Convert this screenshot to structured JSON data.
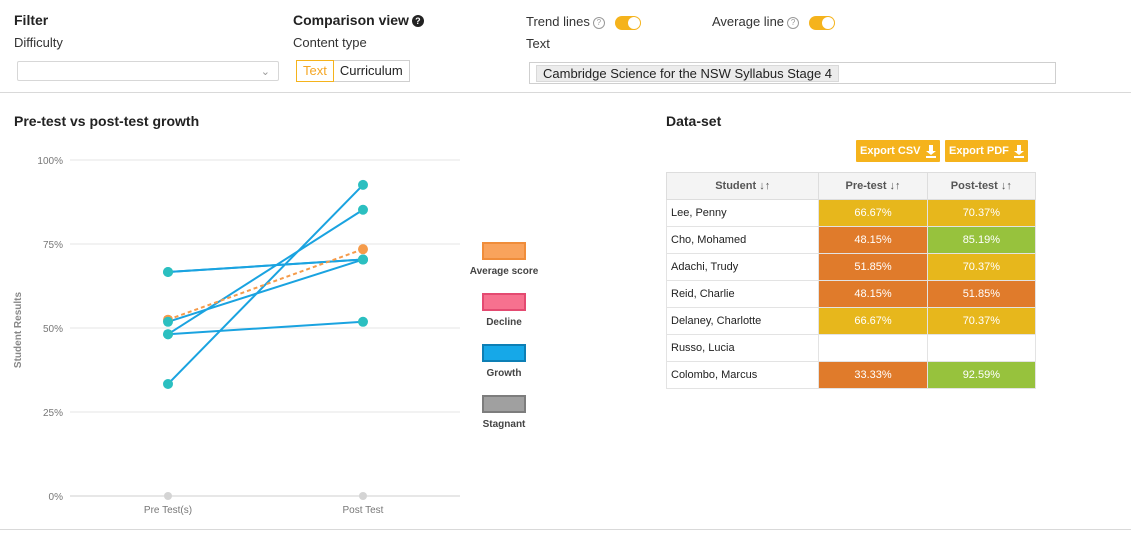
{
  "filter": {
    "title": "Filter",
    "difficulty_label": "Difficulty",
    "difficulty_value": ""
  },
  "comparison": {
    "title": "Comparison view",
    "content_type_label": "Content type",
    "options": [
      "Text",
      "Curriculum"
    ],
    "selected": "Text"
  },
  "trend_lines": {
    "label": "Trend lines",
    "enabled": true
  },
  "average_line": {
    "label": "Average line",
    "enabled": true
  },
  "text_field": {
    "label": "Text",
    "tag": "Cambridge Science for the NSW Syllabus Stage 4"
  },
  "chart_section": {
    "title": "Pre-test vs post-test growth"
  },
  "dataset_section": {
    "title": "Data-set",
    "export_csv": "Export CSV",
    "export_pdf": "Export PDF",
    "columns": [
      "Student ↓↑",
      "Pre-test ↓↑",
      "Post-test ↓↑"
    ],
    "rows": [
      {
        "name": "Lee, Penny",
        "pre": "66.67%",
        "post": "70.37%",
        "pre_color": "gold",
        "post_color": "gold"
      },
      {
        "name": "Cho, Mohamed",
        "pre": "48.15%",
        "post": "85.19%",
        "pre_color": "orange",
        "post_color": "green"
      },
      {
        "name": "Adachi, Trudy",
        "pre": "51.85%",
        "post": "70.37%",
        "pre_color": "orange",
        "post_color": "gold"
      },
      {
        "name": "Reid, Charlie",
        "pre": "48.15%",
        "post": "51.85%",
        "pre_color": "orange",
        "post_color": "orange"
      },
      {
        "name": "Delaney, Charlotte",
        "pre": "66.67%",
        "post": "70.37%",
        "pre_color": "gold",
        "post_color": "gold"
      },
      {
        "name": "Russo, Lucia",
        "pre": "",
        "post": "",
        "pre_color": "none",
        "post_color": "none"
      },
      {
        "name": "Colombo, Marcus",
        "pre": "33.33%",
        "post": "92.59%",
        "pre_color": "orange",
        "post_color": "green"
      }
    ]
  },
  "colors": {
    "accent": "#f5b31c",
    "growth_line": "#1aa3e0",
    "point": "#2bbfc0",
    "average": "#f59b4a",
    "decline": "#f0688a",
    "stagnant": "#9e9e9e"
  },
  "chart_data": {
    "type": "line",
    "ylabel": "Student Results",
    "categories": [
      "Pre Test(s)",
      "Post Test"
    ],
    "y_ticks": [
      "100%",
      "75%",
      "50%",
      "25%",
      "0%"
    ],
    "ylim": [
      0,
      100
    ],
    "series": [
      {
        "name": "Lee, Penny",
        "values": [
          66.67,
          70.37
        ],
        "trend": "Growth"
      },
      {
        "name": "Cho, Mohamed",
        "values": [
          48.15,
          85.19
        ],
        "trend": "Growth"
      },
      {
        "name": "Adachi, Trudy",
        "values": [
          51.85,
          70.37
        ],
        "trend": "Growth"
      },
      {
        "name": "Reid, Charlie",
        "values": [
          48.15,
          51.85
        ],
        "trend": "Growth"
      },
      {
        "name": "Delaney, Charlotte",
        "values": [
          66.67,
          70.37
        ],
        "trend": "Growth"
      },
      {
        "name": "Colombo, Marcus",
        "values": [
          33.33,
          92.59
        ],
        "trend": "Growth"
      }
    ],
    "average": {
      "name": "Average score",
      "values": [
        52.47,
        73.46
      ]
    },
    "legend": [
      "Average score",
      "Decline",
      "Growth",
      "Stagnant"
    ]
  }
}
